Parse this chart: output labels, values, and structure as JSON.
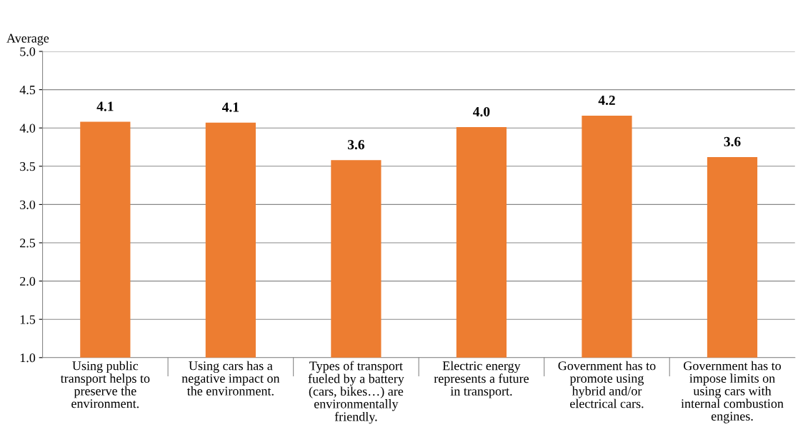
{
  "chart_data": {
    "type": "bar",
    "ylabel": "Average",
    "categories": [
      "Using public\ntransport helps to\npreserve the\nenvironment.",
      "Using cars has a\nnegative impact on\nthe environment.",
      "Types of transport\nfueled by a battery\n(cars, bikes…) are\nenvironmentally\nfriendly.",
      "Electric energy\nrepresents a future\nin transport.",
      "Government has to\npromote using\nhybrid and/or\nelectrical cars.",
      "Government has to\nimpose limits on\nusing cars with\ninternal combustion\nengines."
    ],
    "values": [
      4.08,
      4.07,
      3.58,
      4.01,
      4.16,
      3.62
    ],
    "value_labels": [
      "4.1",
      "4.1",
      "3.6",
      "4.0",
      "4.2",
      "3.6"
    ],
    "color": "#ed7d31",
    "ylim": [
      1.0,
      5.0
    ],
    "yticks": [
      {
        "value": 1.0,
        "label": "1.0"
      },
      {
        "value": 1.5,
        "label": "1.5"
      },
      {
        "value": 2.0,
        "label": "2.0"
      },
      {
        "value": 2.5,
        "label": "2.5"
      },
      {
        "value": 3.0,
        "label": "3.0"
      },
      {
        "value": 3.5,
        "label": "3.5"
      },
      {
        "value": 4.0,
        "label": "4.0"
      },
      {
        "value": 4.5,
        "label": "4.5"
      },
      {
        "value": 5.0,
        "label": "5.0"
      }
    ],
    "grid": "y",
    "legend": false
  }
}
